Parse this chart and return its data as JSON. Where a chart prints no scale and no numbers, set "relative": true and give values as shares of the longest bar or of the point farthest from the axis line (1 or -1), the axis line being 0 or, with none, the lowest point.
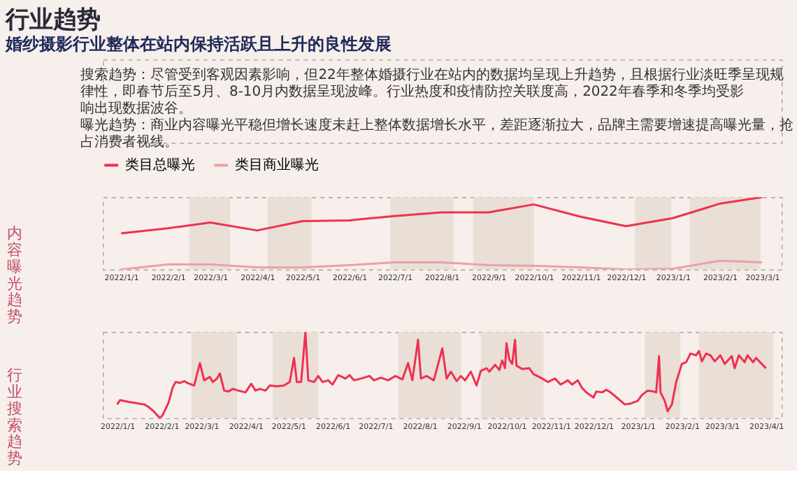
{
  "chart_data": [
    {
      "type": "line",
      "title": "行业趋势",
      "subtitle": "婚纱摄影行业整体在站内保持活跃且上升的良性发展",
      "annotations": [
        "搜索趋势：尽管受到客观因素影响，但22年整体婚摄行业在站内的数据均呈现上升趋势，且根据行业淡旺季呈现规律性，即春节后至5月、8-10月内数据呈现波峰。行业热度和疫情防控关联度高，2022年春季和冬季均受影响出现数据波谷。",
        "曝光趋势：商业内容曝光平稳但增长速度未赶上整体数据增长水平，差距逐渐拉大，品牌主需要增速提高曝光量，抢占消费者视线。"
      ],
      "ylabel": "内容曝光趋势",
      "relative": true,
      "grid": false,
      "legend": "top",
      "tick_labels": "x",
      "x": [
        "2022-01-01",
        "2022-02-01",
        "2022-03-01",
        "2022-04-01",
        "2022-05-01",
        "2022-06-01",
        "2022-07-01",
        "2022-08-01",
        "2022-09-01",
        "2022-10-01",
        "2022-11-01",
        "2022-12-01",
        "2023-01-01",
        "2023-02-01",
        "2023-03-01"
      ],
      "xlim": [
        "2021-12-20",
        "2023-03-14"
      ],
      "xticks": [
        {
          "value": "2022-01-01",
          "label": "2022/1/1"
        },
        {
          "value": "2022-02-01",
          "label": "2022/2/1"
        },
        {
          "value": "2022-03-01",
          "label": "2022/3/1"
        },
        {
          "value": "2022-04-01",
          "label": "2022/4/1"
        },
        {
          "value": "2022-05-01",
          "label": "2022/5/1"
        },
        {
          "value": "2022-06-01",
          "label": "2022/6/1"
        },
        {
          "value": "2022-07-01",
          "label": "2022/7/1"
        },
        {
          "value": "2022-08-01",
          "label": "2022/8/1"
        },
        {
          "value": "2022-09-01",
          "label": "2022/9/1"
        },
        {
          "value": "2022-10-01",
          "label": "2022/10/1"
        },
        {
          "value": "2022-11-01",
          "label": "2022/11/1"
        },
        {
          "value": "2022-12-01",
          "label": "2022/12/1"
        },
        {
          "value": "2023-01-01",
          "label": "2023/1/1"
        },
        {
          "value": "2023-02-01",
          "label": "2023/2/1"
        },
        {
          "value": "2023-03-01",
          "label": "2023/3/1"
        }
      ],
      "bands": [
        {
          "axis": "x",
          "from": "2022-02-15",
          "to": "2022-03-14",
          "color": "#e9dfd7"
        },
        {
          "axis": "x",
          "from": "2022-04-08",
          "to": "2022-05-07",
          "color": "#e9dfd7"
        },
        {
          "axis": "x",
          "from": "2022-06-28",
          "to": "2022-08-09",
          "color": "#e9dfd7"
        },
        {
          "axis": "x",
          "from": "2022-08-22",
          "to": "2022-10-01",
          "color": "#e9dfd7"
        },
        {
          "axis": "x",
          "from": "2022-12-07",
          "to": "2022-12-31",
          "color": "#e9dfd7"
        },
        {
          "axis": "x",
          "from": "2023-01-12",
          "to": "2023-02-28",
          "color": "#e9dfd7"
        }
      ],
      "series": [
        {
          "name": "类目总曝光",
          "color": "#f0304f",
          "values": [
            0.5,
            0.57,
            0.65,
            0.54,
            0.67,
            0.68,
            0.74,
            0.79,
            0.79,
            0.9,
            0.73,
            0.6,
            0.71,
            0.91,
            1.0
          ]
        },
        {
          "name": "类目商业曝光",
          "color": "#eba0a8",
          "values": [
            0,
            0.07,
            0.07,
            0.03,
            0.03,
            0.06,
            0.1,
            0.1,
            0.06,
            0.05,
            0.03,
            0,
            0.01,
            0.12,
            0.1
          ]
        }
      ]
    },
    {
      "type": "line",
      "ylabel": "行业搜索趋势",
      "relative": true,
      "grid": false,
      "tick_labels": "x",
      "xlim": [
        "2021-12-22",
        "2023-04-12"
      ],
      "xticks": [
        {
          "value": "2022-01-01",
          "label": "2022/1/1"
        },
        {
          "value": "2022-02-01",
          "label": "2022/2/1"
        },
        {
          "value": "2022-03-01",
          "label": "2022/3/1"
        },
        {
          "value": "2022-04-01",
          "label": "2022/4/1"
        },
        {
          "value": "2022-05-01",
          "label": "2022/5/1"
        },
        {
          "value": "2022-06-01",
          "label": "2022/6/1"
        },
        {
          "value": "2022-07-01",
          "label": "2022/7/1"
        },
        {
          "value": "2022-08-01",
          "label": "2022/8/1"
        },
        {
          "value": "2022-09-01",
          "label": "2022/9/1"
        },
        {
          "value": "2022-10-01",
          "label": "2022/10/1"
        },
        {
          "value": "2022-11-01",
          "label": "2022/11/1"
        },
        {
          "value": "2022-12-01",
          "label": "2022/12/1"
        },
        {
          "value": "2023-01-01",
          "label": "2023/1/1"
        },
        {
          "value": "2023-02-01",
          "label": "2023/2/1"
        },
        {
          "value": "2023-03-01",
          "label": "2023/3/1"
        },
        {
          "value": "2023-04-01",
          "label": "2023/4/1"
        }
      ],
      "bands": [
        {
          "axis": "x",
          "from": "2022-02-22",
          "to": "2022-03-26",
          "color": "#e9dfd7"
        },
        {
          "axis": "x",
          "from": "2022-04-20",
          "to": "2022-05-22",
          "color": "#e9dfd7"
        },
        {
          "axis": "x",
          "from": "2022-07-17",
          "to": "2022-08-30",
          "color": "#e9dfd7"
        },
        {
          "axis": "x",
          "from": "2022-09-13",
          "to": "2022-10-27",
          "color": "#e9dfd7"
        },
        {
          "axis": "x",
          "from": "2023-01-06",
          "to": "2023-01-31",
          "color": "#e9dfd7"
        },
        {
          "axis": "x",
          "from": "2023-02-13",
          "to": "2023-04-06",
          "color": "#e9dfd7"
        }
      ],
      "series": [
        {
          "color": "#f0304f",
          "x": [
            "2022-01-01",
            "2022-01-03",
            "2022-01-06",
            "2022-01-09",
            "2022-01-13",
            "2022-01-16",
            "2022-01-20",
            "2022-01-23",
            "2022-01-26",
            "2022-01-31",
            "2022-02-02",
            "2022-02-06",
            "2022-02-09",
            "2022-02-11",
            "2022-02-14",
            "2022-02-17",
            "2022-02-19",
            "2022-02-24",
            "2022-02-28",
            "2022-03-03",
            "2022-03-07",
            "2022-03-09",
            "2022-03-12",
            "2022-03-14",
            "2022-03-17",
            "2022-03-20",
            "2022-03-23",
            "2022-03-27",
            "2022-04-01",
            "2022-04-05",
            "2022-04-08",
            "2022-04-11",
            "2022-04-15",
            "2022-04-18",
            "2022-04-23",
            "2022-04-28",
            "2022-05-02",
            "2022-05-05",
            "2022-05-07",
            "2022-05-10",
            "2022-05-13",
            "2022-05-15",
            "2022-05-19",
            "2022-05-22",
            "2022-05-25",
            "2022-05-29",
            "2022-06-01",
            "2022-06-05",
            "2022-06-10",
            "2022-06-13",
            "2022-06-16",
            "2022-06-21",
            "2022-06-27",
            "2022-06-30",
            "2022-07-05",
            "2022-07-10",
            "2022-07-15",
            "2022-07-20",
            "2022-07-24",
            "2022-07-27",
            "2022-07-31",
            "2022-08-02",
            "2022-08-06",
            "2022-08-11",
            "2022-08-17",
            "2022-08-20",
            "2022-08-23",
            "2022-08-27",
            "2022-08-30",
            "2022-09-02",
            "2022-09-06",
            "2022-09-10",
            "2022-09-13",
            "2022-09-17",
            "2022-09-19",
            "2022-09-23",
            "2022-09-26",
            "2022-09-28",
            "2022-09-30",
            "2022-10-01",
            "2022-10-03",
            "2022-10-05",
            "2022-10-07",
            "2022-10-08",
            "2022-10-12",
            "2022-10-17",
            "2022-10-20",
            "2022-10-25",
            "2022-10-30",
            "2022-11-04",
            "2022-11-08",
            "2022-11-13",
            "2022-11-16",
            "2022-11-20",
            "2022-11-23",
            "2022-11-26",
            "2022-12-01",
            "2022-12-03",
            "2022-12-07",
            "2022-12-10",
            "2022-12-13",
            "2022-12-18",
            "2022-12-23",
            "2022-12-27",
            "2023-01-01",
            "2023-01-04",
            "2023-01-08",
            "2023-01-12",
            "2023-01-14",
            "2023-01-16",
            "2023-01-17",
            "2023-01-20",
            "2023-01-22",
            "2023-01-25",
            "2023-01-28",
            "2023-02-01",
            "2023-02-04",
            "2023-02-07",
            "2023-02-11",
            "2023-02-13",
            "2023-02-15",
            "2023-02-18",
            "2023-02-21",
            "2023-02-24",
            "2023-02-28",
            "2023-03-03",
            "2023-03-08",
            "2023-03-10",
            "2023-03-13",
            "2023-03-17",
            "2023-03-19",
            "2023-03-23",
            "2023-03-25",
            "2023-03-29",
            "2023-04-01"
          ],
          "values": [
            0.16,
            0.21,
            0.2,
            0.19,
            0.18,
            0.17,
            0.16,
            0.13,
            0.09,
            0,
            0.04,
            0.18,
            0.36,
            0.42,
            0.41,
            0.43,
            0.41,
            0.38,
            0.64,
            0.44,
            0.48,
            0.42,
            0.46,
            0.52,
            0.32,
            0.31,
            0.34,
            0.32,
            0.3,
            0.4,
            0.32,
            0.34,
            0.32,
            0.38,
            0.37,
            0.38,
            0.42,
            0.7,
            0.42,
            0.42,
            1.0,
            0.44,
            0.42,
            0.49,
            0.42,
            0.44,
            0.39,
            0.5,
            0.46,
            0.5,
            0.44,
            0.46,
            0.49,
            0.44,
            0.47,
            0.44,
            0.49,
            0.45,
            0.64,
            0.44,
            0.91,
            0.46,
            0.49,
            0.44,
            0.81,
            0.46,
            0.54,
            0.43,
            0.49,
            0.44,
            0.54,
            0.38,
            0.55,
            0.58,
            0.54,
            0.62,
            0.56,
            0.67,
            0.58,
            0.87,
            0.68,
            0.63,
            0.91,
            0.61,
            0.57,
            0.58,
            0.51,
            0.47,
            0.42,
            0.46,
            0.39,
            0.44,
            0.39,
            0.44,
            0.35,
            0.3,
            0.24,
            0.31,
            0.3,
            0.33,
            0.3,
            0.23,
            0.16,
            0.17,
            0.2,
            0.27,
            0.32,
            0.31,
            0.3,
            0.72,
            0.3,
            0.2,
            0.08,
            0.16,
            0.42,
            0.63,
            0.65,
            0.75,
            0.73,
            0.78,
            0.66,
            0.75,
            0.73,
            0.66,
            0.73,
            0.63,
            0.72,
            0.58,
            0.73,
            0.65,
            0.73,
            0.65,
            0.7,
            0.63,
            0.58
          ]
        }
      ]
    }
  ]
}
